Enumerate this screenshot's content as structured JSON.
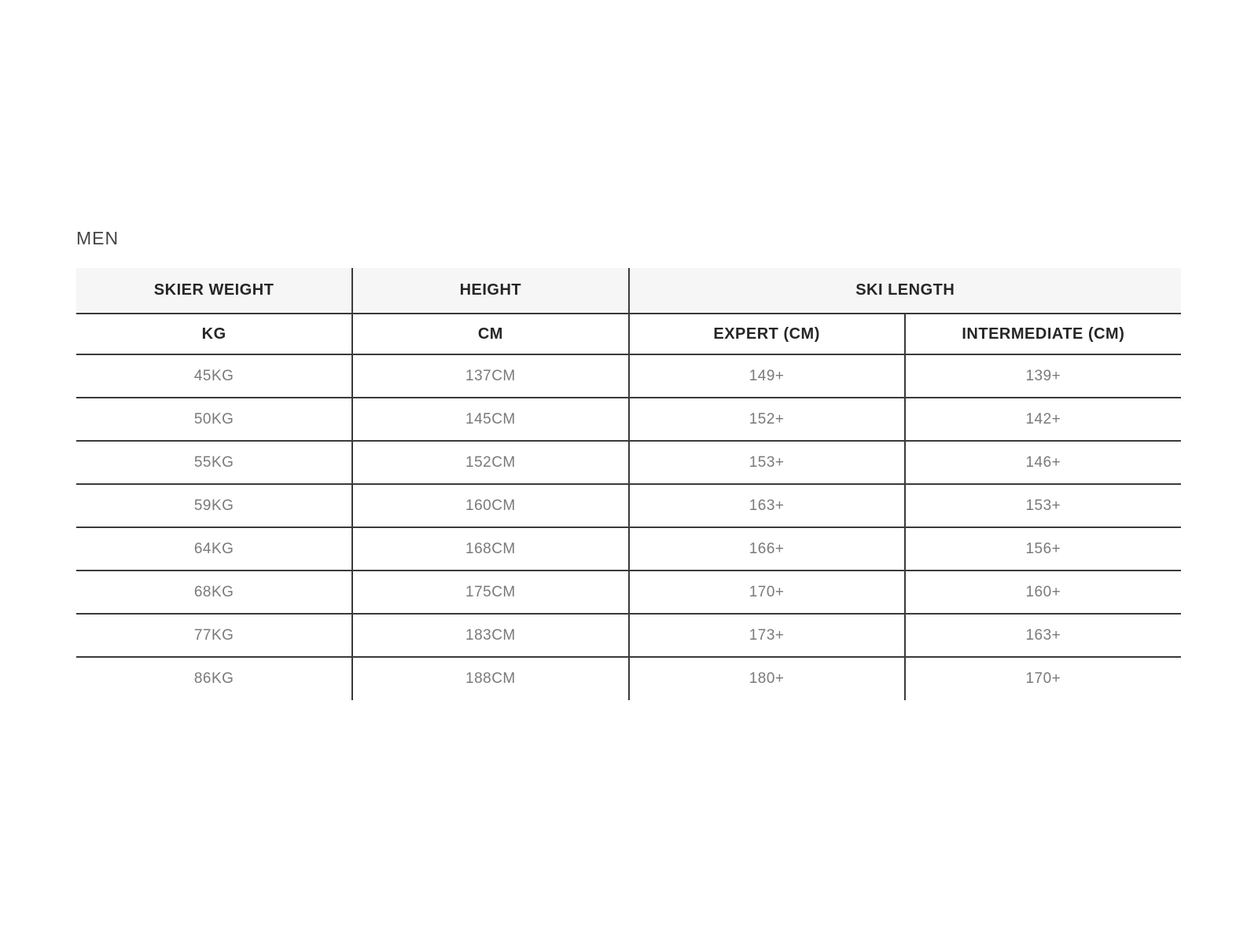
{
  "section": {
    "title": "MEN"
  },
  "chart_data": {
    "type": "table",
    "title": "MEN",
    "column_groups": [
      {
        "label": "SKIER WEIGHT",
        "span": 1
      },
      {
        "label": "HEIGHT",
        "span": 1
      },
      {
        "label": "SKI LENGTH",
        "span": 2
      }
    ],
    "columns": [
      "KG",
      "CM",
      "EXPERT (CM)",
      "INTERMEDIATE (CM)"
    ],
    "rows": [
      [
        "45KG",
        "137CM",
        "149+",
        "139+"
      ],
      [
        "50KG",
        "145CM",
        "152+",
        "142+"
      ],
      [
        "55KG",
        "152CM",
        "153+",
        "146+"
      ],
      [
        "59KG",
        "160CM",
        "163+",
        "153+"
      ],
      [
        "64KG",
        "168CM",
        "166+",
        "156+"
      ],
      [
        "68KG",
        "175CM",
        "170+",
        "160+"
      ],
      [
        "77KG",
        "183CM",
        "173+",
        "163+"
      ],
      [
        "86KG",
        "188CM",
        "180+",
        "170+"
      ]
    ]
  },
  "colors": {
    "page_bg": "#ffffff",
    "header_bg": "#f6f6f6",
    "border": "#3a3a3a",
    "header_text": "#262626",
    "data_text": "#7a7a7a",
    "title_text": "#454545"
  }
}
